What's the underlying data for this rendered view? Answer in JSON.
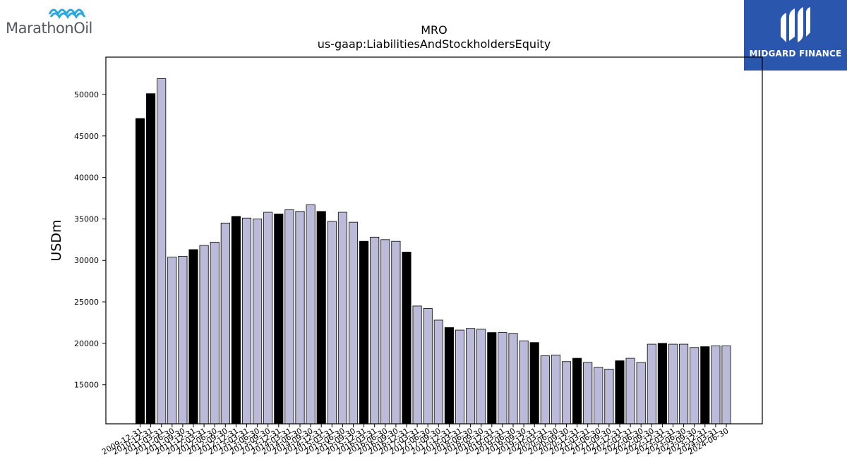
{
  "logos": {
    "left_wordmark": "MarathonOil",
    "right_brand": "MIDGARD FINANCE"
  },
  "chart_data": {
    "type": "bar",
    "title": "MRO",
    "subtitle": "us-gaap:LiabilitiesAndStockholdersEquity",
    "xlabel": "",
    "ylabel": "USDm",
    "ylim": [
      10300,
      54500
    ],
    "yticks": [
      15000,
      20000,
      25000,
      30000,
      35000,
      40000,
      45000,
      50000
    ],
    "grid": false,
    "colors": {
      "annual": "#000000",
      "quarterly": "#bcbad9",
      "edge": "#000000"
    },
    "categories": [
      "2009-12-31",
      "2010-12-31",
      "2011-03-31",
      "2011-06-30",
      "2011-09-30",
      "2011-12-31",
      "2012-03-31",
      "2012-06-30",
      "2012-09-30",
      "2012-12-31",
      "2013-03-31",
      "2013-06-30",
      "2013-09-30",
      "2013-12-31",
      "2014-03-31",
      "2014-06-30",
      "2014-09-30",
      "2014-12-31",
      "2015-03-31",
      "2015-06-30",
      "2015-09-30",
      "2015-12-31",
      "2016-03-31",
      "2016-06-30",
      "2016-09-30",
      "2016-12-31",
      "2017-03-31",
      "2017-06-30",
      "2017-09-30",
      "2017-12-31",
      "2018-03-31",
      "2018-06-30",
      "2018-09-30",
      "2018-12-31",
      "2019-03-31",
      "2019-06-30",
      "2019-09-30",
      "2019-12-31",
      "2020-03-31",
      "2020-06-30",
      "2020-09-30",
      "2020-12-31",
      "2021-03-31",
      "2021-06-30",
      "2021-09-30",
      "2021-12-31",
      "2022-03-31",
      "2022-06-30",
      "2022-09-30",
      "2022-12-31",
      "2023-03-31",
      "2023-06-30",
      "2023-09-30",
      "2023-12-31",
      "2024-03-31",
      "2024-06-30"
    ],
    "values": [
      47100,
      50100,
      51900,
      30400,
      30500,
      31300,
      31800,
      32200,
      34500,
      35300,
      35100,
      35000,
      35800,
      35600,
      36100,
      35900,
      36700,
      35900,
      34700,
      35800,
      34600,
      32300,
      32800,
      32500,
      32300,
      31000,
      24500,
      24200,
      22800,
      21900,
      21600,
      21800,
      21700,
      21300,
      21300,
      21200,
      20300,
      20100,
      18500,
      18600,
      17800,
      18200,
      17700,
      17100,
      16900,
      17900,
      18200,
      17700,
      19900,
      20000,
      19900,
      19900,
      19500,
      19600,
      19700,
      19700
    ],
    "period_type": [
      "annual",
      "annual",
      "quarterly",
      "quarterly",
      "quarterly",
      "annual",
      "quarterly",
      "quarterly",
      "quarterly",
      "annual",
      "quarterly",
      "quarterly",
      "quarterly",
      "annual",
      "quarterly",
      "quarterly",
      "quarterly",
      "annual",
      "quarterly",
      "quarterly",
      "quarterly",
      "annual",
      "quarterly",
      "quarterly",
      "quarterly",
      "annual",
      "quarterly",
      "quarterly",
      "quarterly",
      "annual",
      "quarterly",
      "quarterly",
      "quarterly",
      "annual",
      "quarterly",
      "quarterly",
      "quarterly",
      "annual",
      "quarterly",
      "quarterly",
      "quarterly",
      "annual",
      "quarterly",
      "quarterly",
      "quarterly",
      "annual",
      "quarterly",
      "quarterly",
      "quarterly",
      "annual",
      "quarterly",
      "quarterly",
      "quarterly",
      "annual",
      "quarterly",
      "quarterly"
    ]
  }
}
